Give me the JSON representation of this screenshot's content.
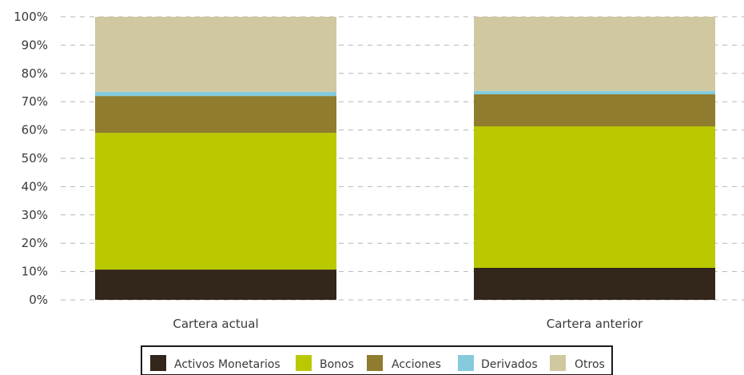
{
  "chart_data": {
    "type": "bar",
    "stacked": true,
    "categories": [
      "Cartera actual",
      "Cartera anterior"
    ],
    "series": [
      {
        "name": "Activos Monetarios",
        "color": "#33261a",
        "values": [
          10.7,
          11.3
        ]
      },
      {
        "name": "Bonos",
        "color": "#bac800",
        "values": [
          48.3,
          50.0
        ]
      },
      {
        "name": "Acciones",
        "color": "#8f7c2e",
        "values": [
          13.0,
          11.3
        ]
      },
      {
        "name": "Derivados",
        "color": "#85cbdc",
        "values": [
          1.5,
          1.2
        ]
      },
      {
        "name": "Otros",
        "color": "#cfc8a0",
        "values": [
          26.5,
          26.2
        ]
      }
    ],
    "y_ticks": [
      "0%",
      "10%",
      "20%",
      "30%",
      "40%",
      "50%",
      "60%",
      "70%",
      "80%",
      "90%",
      "100%"
    ],
    "ylim": [
      0,
      100
    ],
    "grid": true,
    "legend_position": "bottom"
  }
}
